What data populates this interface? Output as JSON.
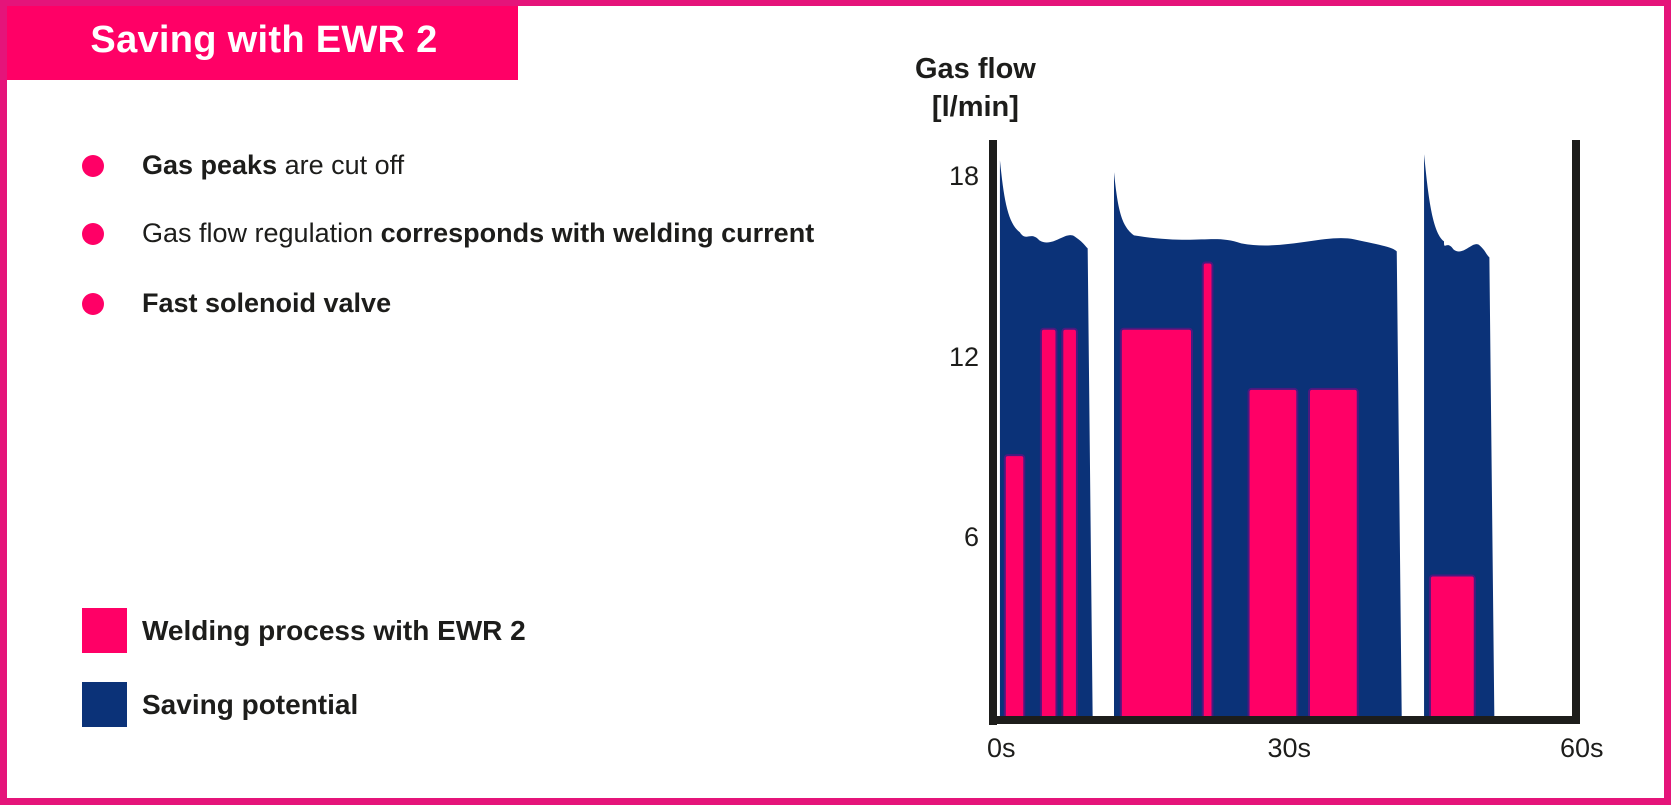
{
  "header": {
    "title": "Saving with EWR 2"
  },
  "bullets": [
    {
      "bold_prefix": "Gas peaks",
      "text": " are cut off",
      "bold_suffix": ""
    },
    {
      "bold_prefix": "",
      "text": "Gas flow regulation ",
      "bold_suffix": "corresponds with welding current"
    },
    {
      "bold_prefix": "Fast solenoid valve",
      "text": "",
      "bold_suffix": ""
    }
  ],
  "legend": [
    {
      "label": "Welding process with EWR 2",
      "color": "#ff0066"
    },
    {
      "label": "Saving potential",
      "color": "#0b3278"
    }
  ],
  "colors": {
    "accent": "#ff0066",
    "frame": "#e5147a",
    "navy": "#0b3278",
    "axis": "#1d1d1b"
  },
  "chart_data": {
    "type": "area",
    "title": "Gas flow [l/min]",
    "ylabel": "Gas flow [l/min]",
    "xlabel": "",
    "ylim": [
      0,
      19
    ],
    "xlim": [
      0,
      62
    ],
    "y_ticks": [
      {
        "value": 18,
        "label": "18"
      },
      {
        "value": 12,
        "label": "12"
      },
      {
        "value": 6,
        "label": "6"
      }
    ],
    "x_ticks": [
      {
        "value": 0,
        "label": "0s"
      },
      {
        "value": 30,
        "label": "30s"
      },
      {
        "value": 60,
        "label": "60s"
      }
    ],
    "grid": false,
    "legend_position": "left, outside chart",
    "series": [
      {
        "name": "Saving potential",
        "color": "#0b3278",
        "description": "Gas flow without EWR 2 (peaks at start of each weld, then ~16 l/min)",
        "segments": [
          {
            "start": 0.3,
            "end": 9.3,
            "peak": 18.6,
            "plateau": 16.0
          },
          {
            "start": 12.0,
            "end": 41.0,
            "peak": 18.2,
            "plateau": 15.9
          },
          {
            "start": 43.8,
            "end": 50.5,
            "peak": 18.8,
            "plateau": 15.7
          }
        ]
      },
      {
        "name": "Welding process with EWR 2",
        "color": "#ff0066",
        "bars": [
          {
            "start": 0.8,
            "end": 2.8,
            "value": 8.8
          },
          {
            "start": 4.5,
            "end": 6.1,
            "value": 13.0
          },
          {
            "start": 6.7,
            "end": 8.2,
            "value": 13.0
          },
          {
            "start": 12.7,
            "end": 20.0,
            "value": 13.0
          },
          {
            "start": 21.1,
            "end": 22.1,
            "value": 15.2
          },
          {
            "start": 25.8,
            "end": 30.8,
            "value": 11.0
          },
          {
            "start": 32.0,
            "end": 37.0,
            "value": 11.0
          },
          {
            "start": 44.4,
            "end": 49.0,
            "value": 4.8
          }
        ]
      }
    ]
  }
}
